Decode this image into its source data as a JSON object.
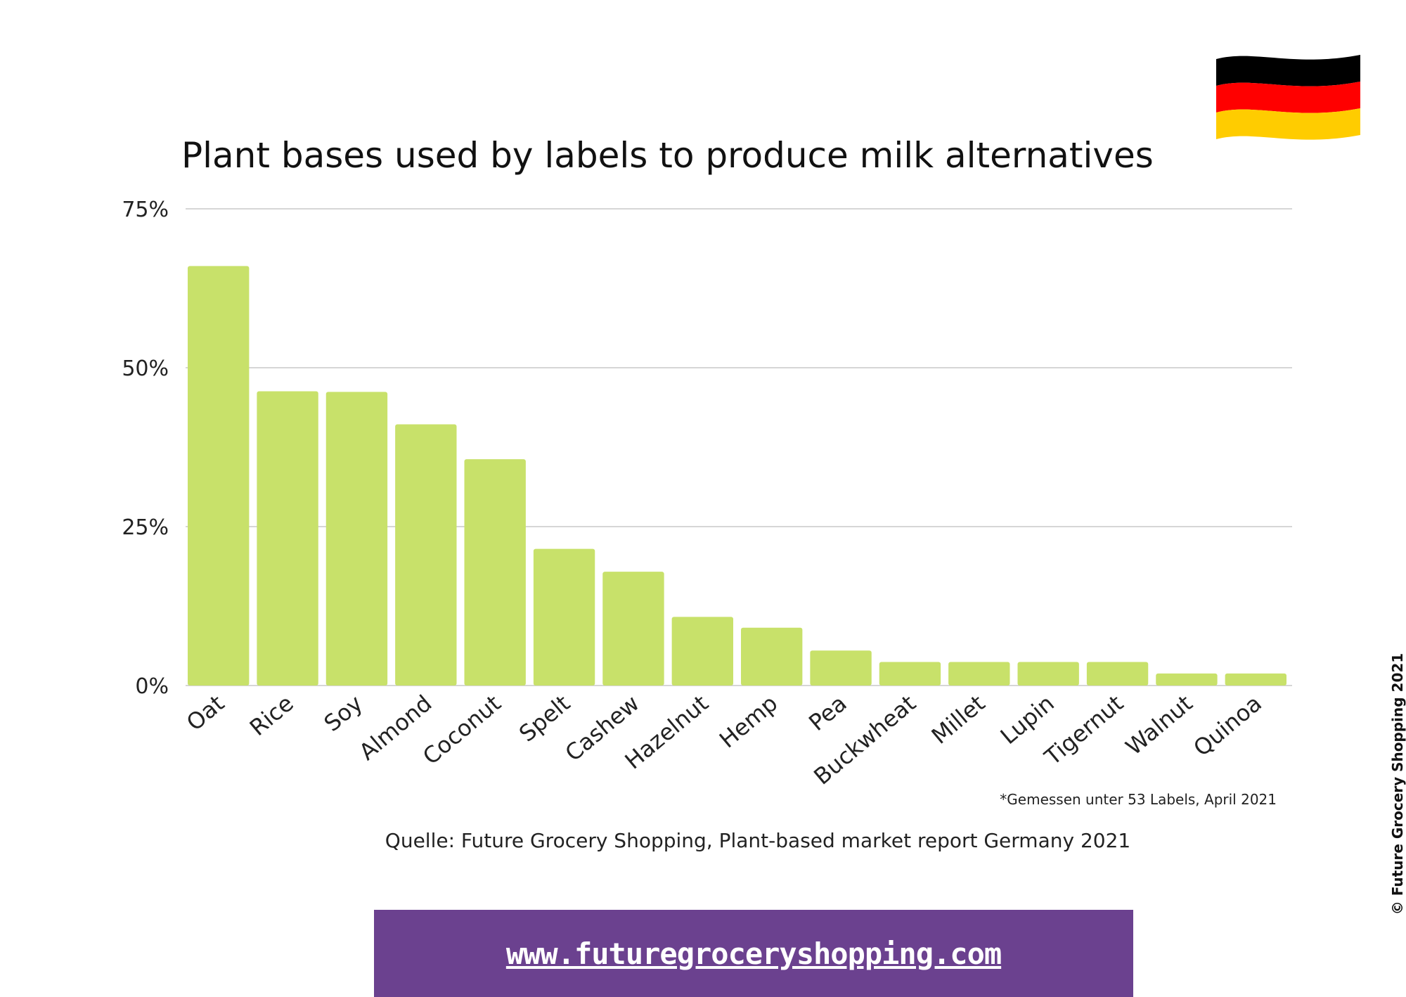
{
  "chart_data": {
    "type": "bar",
    "title": "Plant bases used by labels to produce milk alternatives",
    "categories": [
      "Oat",
      "Rice",
      "Soy",
      "Almond",
      "Coconut",
      "Spelt",
      "Cashew",
      "Hazelnut",
      "Hemp",
      "Pea",
      "Buckwheat",
      "Millet",
      "Lupin",
      "Tigernut",
      "Walnut",
      "Quinoa"
    ],
    "values": [
      66,
      46.3,
      46.2,
      41.1,
      35.6,
      21.5,
      17.9,
      10.8,
      9.1,
      5.5,
      3.7,
      3.7,
      3.7,
      3.7,
      1.9,
      1.9
    ],
    "ylim": [
      0,
      75
    ],
    "yticks": [
      "0%",
      "25%",
      "50%",
      "75%"
    ],
    "ytick_values": [
      0,
      25,
      50,
      75
    ],
    "grid": true,
    "bar_color": "#c8e16a"
  },
  "footnote": "*Gemessen unter 53 Labels, April 2021",
  "source": "Quelle: Future Grocery Shopping, Plant-based market report Germany 2021",
  "website": "www.futuregroceryshopping.com",
  "copyright": "© Future Grocery Shopping 2021",
  "flag": {
    "name": "germany-flag-icon",
    "colors": [
      "#000000",
      "#ff0000",
      "#ffcc00"
    ]
  },
  "banner_color": "#6b418f"
}
